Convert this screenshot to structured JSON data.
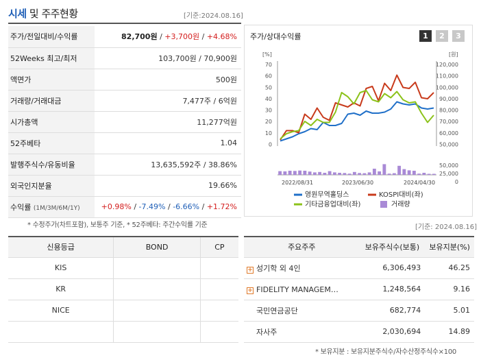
{
  "header": {
    "title_accent": "시세",
    "title_rest": " 및 주주현황",
    "date": "[기준:2024.08.16]"
  },
  "quote": {
    "rows": [
      {
        "label": "주가/전일대비/수익률",
        "price": "82,700원",
        "sep1": " / ",
        "change": "+3,700원",
        "sep2": " / ",
        "rate": "+4.68%"
      },
      {
        "label": "52Weeks 최고/최저",
        "value": "103,700원 / 70,900원"
      },
      {
        "label": "액면가",
        "value": "500원"
      },
      {
        "label": "거래량/거래대금",
        "value": "7,477주 / 6억원"
      },
      {
        "label": "시가총액",
        "value": "11,277억원"
      },
      {
        "label": "52주베타",
        "value": "1.04"
      },
      {
        "label": "발행주식수/유동비율",
        "value": "13,635,592주 / 38.86%"
      },
      {
        "label": "외국인지분율",
        "value": "19.66%"
      }
    ],
    "returns": {
      "label": "수익률",
      "label_sub": "(1M/3M/6M/1Y)",
      "v1": "+0.98%",
      "v2": "-7.49%",
      "v3": "-6.66%",
      "v4": "+1.72%",
      "sep": "/"
    },
    "note": "* 수정주가(차트포함), 보통주 기준, * 52주베타: 주간수익률 기준"
  },
  "chart": {
    "title": "주가/상대수익률",
    "period_buttons": [
      "1",
      "2",
      "3"
    ],
    "active_period": "1",
    "date2": "[기준: 2024.08.16]"
  },
  "chart_data": {
    "type": "line",
    "left_axis_unit": "[%]",
    "right_axis_unit": "[원]",
    "left_ticks": [
      "70",
      "60",
      "50",
      "40",
      "30",
      "20",
      "10",
      "0"
    ],
    "right_ticks": [
      "120,000",
      "110,000",
      "100,000",
      "90,000",
      "80,000",
      "70,000",
      "60,000",
      "50,000"
    ],
    "volume_ticks": [
      "50,000",
      "25,000",
      "0"
    ],
    "x_labels": [
      "2022/08/31",
      "2023/06/30",
      "2024/04/30"
    ],
    "ylim_left": [
      -5,
      75
    ],
    "ylim_volume": [
      0,
      60000
    ],
    "series": [
      {
        "name": "영원무역홀딩스",
        "axis": "left",
        "color": "#1f6fc8",
        "values": [
          0,
          2,
          4,
          7,
          9,
          12,
          11,
          18,
          15,
          15,
          17,
          26,
          27,
          25,
          29,
          27,
          27,
          28,
          31,
          38,
          36,
          35,
          36,
          32,
          31,
          32
        ]
      },
      {
        "name": "KOSPI대비(좌)",
        "axis": "left",
        "color": "#c83a1b",
        "values": [
          1,
          10,
          10,
          8,
          26,
          21,
          32,
          23,
          20,
          37,
          35,
          33,
          37,
          34,
          51,
          53,
          39,
          56,
          49,
          64,
          52,
          51,
          57,
          42,
          41,
          47
        ]
      },
      {
        "name": "기타금융업대비(좌)",
        "axis": "left",
        "color": "#8cc21a",
        "values": [
          2,
          7,
          9,
          10,
          19,
          15,
          21,
          18,
          18,
          28,
          47,
          43,
          36,
          47,
          49,
          40,
          38,
          46,
          42,
          48,
          40,
          37,
          38,
          27,
          18,
          25
        ]
      },
      {
        "name": "거래량",
        "axis": "volume",
        "color": "#a98ad6",
        "type": "bar",
        "values": [
          18000,
          17000,
          20000,
          19000,
          21000,
          20000,
          16000,
          12000,
          14000,
          10000,
          18000,
          12000,
          10000,
          9000,
          6000,
          14000,
          9000,
          8000,
          12000,
          30000,
          17000,
          52000,
          6000,
          8000,
          44000,
          28000,
          22000,
          20000,
          6000,
          10000,
          5000,
          5000
        ]
      }
    ]
  },
  "credit": {
    "headers": [
      "신용등급",
      "BOND",
      "CP"
    ],
    "rows": [
      [
        "KIS",
        "",
        ""
      ],
      [
        "KR",
        "",
        ""
      ],
      [
        "NICE",
        "",
        ""
      ],
      [
        "",
        "",
        ""
      ]
    ]
  },
  "holders": {
    "headers": [
      "주요주주",
      "보유주식수(보통)",
      "보유지분(%)"
    ],
    "rows": [
      {
        "name": "성기학 외 4인",
        "expand": true,
        "shares": "6,306,493",
        "pct": "46.25"
      },
      {
        "name": "FIDELITY MANAGEMENT & RESEARCH",
        "expand": true,
        "shares": "1,248,564",
        "pct": "9.16"
      },
      {
        "name": "국민연금공단",
        "expand": false,
        "shares": "682,774",
        "pct": "5.01"
      },
      {
        "name": "자사주",
        "expand": false,
        "shares": "2,030,694",
        "pct": "14.89"
      }
    ],
    "plus_glyph": "+",
    "note": "* 보유지분 : 보유지분주식수/자수산정주식수×100"
  }
}
